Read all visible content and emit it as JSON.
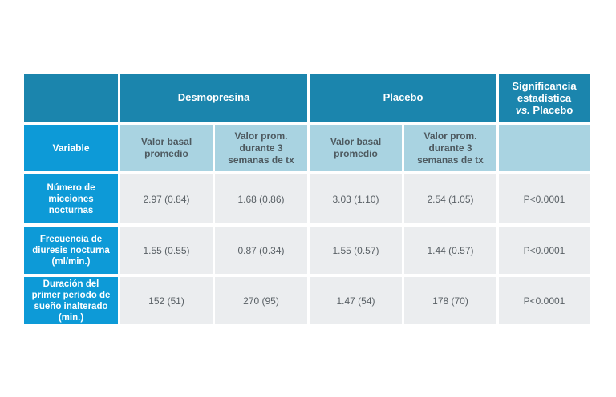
{
  "header": {
    "desmopresina": "Desmopresina",
    "placebo": "Placebo",
    "significance_line1": "Significancia",
    "significance_line2": "estadística",
    "significance_vs": "vs.",
    "significance_rest": " Placebo"
  },
  "subheader": {
    "variable": "Variable",
    "baseline": "Valor basal promedio",
    "mean_during": "Valor prom. durante 3 semanas de tx"
  },
  "rows": [
    {
      "label": "Número de micciones nocturnas",
      "values": [
        "2.97 (0.84)",
        "1.68 (0.86)",
        "3.03 (1.10)",
        "2.54 (1.05)",
        "P<0.0001"
      ]
    },
    {
      "label": "Frecuencia de diuresis nocturna (ml/min.)",
      "values": [
        "1.55 (0.55)",
        "0.87 (0.34)",
        "1.55 (0.57)",
        "1.44 (0.57)",
        "P<0.0001"
      ]
    },
    {
      "label": "Duración del primer periodo de sueño inalterado (min.)",
      "values": [
        "152 (51)",
        "270 (95)",
        "1.47 (54)",
        "178 (70)",
        "P<0.0001"
      ]
    }
  ],
  "colors": {
    "group_header": "#1b85ad",
    "row_label": "#0d9ad7",
    "subheader": "#a9d3e1",
    "value_cell": "#ebedef"
  }
}
